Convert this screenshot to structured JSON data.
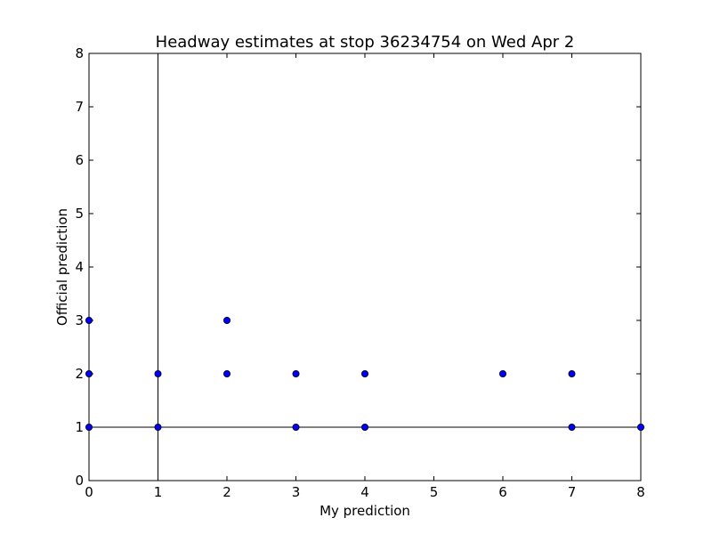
{
  "chart_data": {
    "type": "scatter",
    "title": "Headway estimates at stop 36234754 on Wed Apr 2",
    "xlabel": "My prediction",
    "ylabel": "Official prediction",
    "xlim": [
      0,
      8
    ],
    "ylim": [
      0,
      8
    ],
    "xticks": [
      "0",
      "1",
      "2",
      "3",
      "4",
      "5",
      "6",
      "7",
      "8"
    ],
    "yticks": [
      "0",
      "1",
      "2",
      "3",
      "4",
      "5",
      "6",
      "7",
      "8"
    ],
    "grid": false,
    "reference_lines": {
      "vertical_x": 1,
      "horizontal_y": 1
    },
    "marker_color": "#0000ff",
    "points": [
      {
        "x": 0,
        "y": 3
      },
      {
        "x": 0,
        "y": 2
      },
      {
        "x": 0,
        "y": 1
      },
      {
        "x": 1,
        "y": 2
      },
      {
        "x": 1,
        "y": 1
      },
      {
        "x": 2,
        "y": 3
      },
      {
        "x": 2,
        "y": 2
      },
      {
        "x": 3,
        "y": 2
      },
      {
        "x": 3,
        "y": 1
      },
      {
        "x": 4,
        "y": 2
      },
      {
        "x": 4,
        "y": 1
      },
      {
        "x": 6,
        "y": 2
      },
      {
        "x": 7,
        "y": 2
      },
      {
        "x": 7,
        "y": 1
      },
      {
        "x": 8,
        "y": 1
      }
    ]
  }
}
